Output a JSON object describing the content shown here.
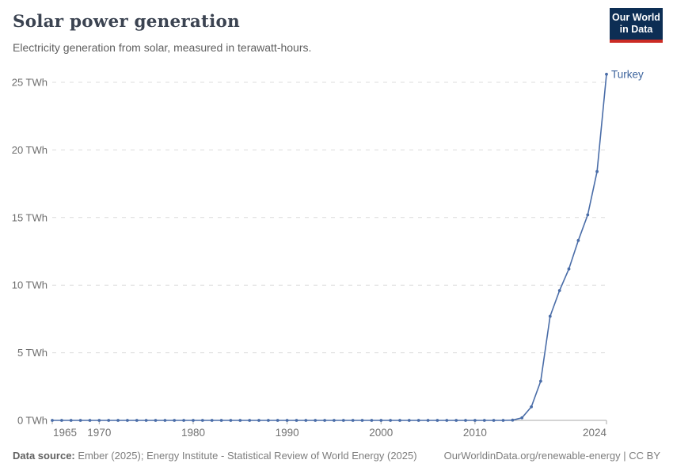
{
  "header": {
    "title": "Solar power generation",
    "subtitle": "Electricity generation from solar, measured in terawatt-hours.",
    "logo": {
      "line1": "Our World",
      "line2": "in Data",
      "bg_color": "#0d2e54",
      "accent_color": "#cb2b24"
    }
  },
  "chart_data": {
    "type": "line",
    "title": "Solar power generation",
    "unit": "TWh",
    "xlim": [
      1965,
      2024
    ],
    "ylim": [
      0,
      25
    ],
    "yticks": [
      0,
      5,
      10,
      15,
      20,
      25
    ],
    "ytick_suffix": " TWh",
    "xticks": [
      1965,
      1970,
      1980,
      1990,
      2000,
      2010,
      2024
    ],
    "grid": "horizontal-dashed",
    "legend_position": "end-of-line-label",
    "axis_color": "#a9a9a9",
    "grid_color": "#dcdcdc",
    "tick_label_color": "#737373",
    "series": [
      {
        "name": "Turkey",
        "color": "#4a6da8",
        "label_color": "#3d649d",
        "x_start": 1965,
        "values": [
          0,
          0,
          0,
          0,
          0,
          0,
          0,
          0,
          0,
          0,
          0,
          0,
          0,
          0,
          0,
          0,
          0,
          0,
          0,
          0,
          0,
          0,
          0,
          0,
          0,
          0,
          0,
          0,
          0,
          0,
          0,
          0,
          0,
          0,
          0,
          0,
          0,
          0,
          0,
          0,
          0,
          0,
          0,
          0,
          0,
          0,
          0,
          0,
          0,
          0.02,
          0.19,
          1.0,
          2.9,
          7.7,
          9.6,
          11.2,
          13.3,
          15.2,
          18.4,
          25.6
        ]
      }
    ]
  },
  "footer": {
    "source_label": "Data source:",
    "source_text": " Ember (2025); Energy Institute - Statistical Review of World Energy (2025)",
    "link": "OurWorldinData.org/renewable-energy | CC BY"
  }
}
